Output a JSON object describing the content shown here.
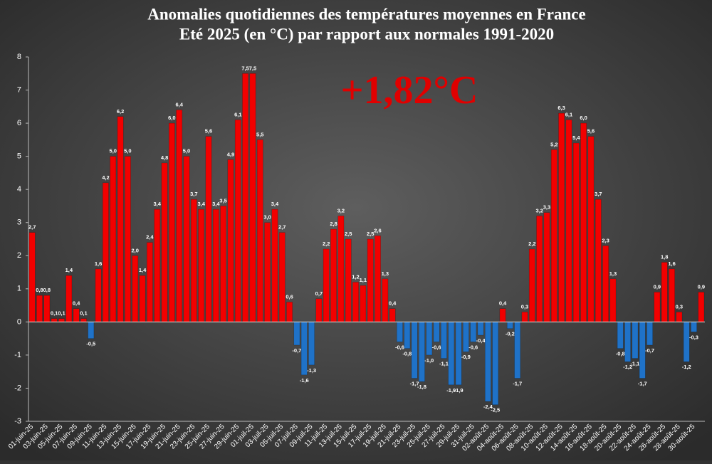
{
  "chart_data": {
    "type": "bar",
    "title": "Anomalies quotidiennes des températures moyennes en France",
    "subtitle": "Eté 2025 (en °C) par rapport aux normales 1991-2020",
    "annotation": "+1,82°C",
    "categories": [
      "01-juin-25",
      null,
      "03-juin-25",
      null,
      "05-juin-25",
      null,
      "07-juin-25",
      null,
      "09-juin-25",
      null,
      "11-juin-25",
      null,
      "13-juin-25",
      null,
      "15-juin-25",
      null,
      "17-juin-25",
      null,
      "19-juin-25",
      null,
      "21-juin-25",
      null,
      "23-juin-25",
      null,
      "25-juin-25",
      null,
      "27-juin-25",
      null,
      "29-juin-25",
      null,
      "01-juil-25",
      null,
      "03-juil-25",
      null,
      "05-juil-25",
      null,
      "07-juil-25",
      null,
      "09-juil-25",
      null,
      "11-juil-25",
      null,
      "13-juil-25",
      null,
      "15-juil-25",
      null,
      "17-juil-25",
      null,
      "19-juil-25",
      null,
      "21-juil-25",
      null,
      "23-juil-25",
      null,
      "25-juil-25",
      null,
      "27-juil-25",
      null,
      "29-juil-25",
      null,
      "31-juil-25",
      null,
      "02-août-25",
      null,
      "04-août-25",
      null,
      "06-août-25",
      null,
      "08-août-25",
      null,
      "10-août-25",
      null,
      "12-août-25",
      null,
      "14-août-25",
      null,
      "16-août-25",
      null,
      "18-août-25",
      null,
      "20-août-25",
      null,
      "22-août-25",
      null,
      "24-août-25",
      null,
      "26-août-25",
      null,
      "28-août-25",
      null,
      "30-août-25",
      null
    ],
    "values": [
      2.7,
      0.8,
      0.8,
      0.1,
      0.1,
      1.4,
      0.4,
      0.1,
      -0.5,
      1.6,
      4.2,
      5.0,
      6.2,
      5.0,
      2.0,
      1.4,
      2.4,
      3.4,
      4.8,
      6.0,
      6.4,
      5.0,
      3.7,
      3.4,
      5.6,
      3.4,
      3.5,
      4.9,
      6.1,
      7.5,
      7.5,
      5.5,
      3.0,
      3.4,
      2.7,
      0.6,
      -0.7,
      -1.6,
      -1.3,
      0.7,
      2.2,
      2.8,
      3.2,
      2.5,
      1.2,
      1.1,
      2.5,
      2.6,
      1.3,
      0.4,
      -0.6,
      -0.8,
      -1.7,
      -1.8,
      -1.0,
      -0.6,
      -1.1,
      -1.9,
      -1.9,
      -0.9,
      -0.6,
      -0.4,
      -2.4,
      -2.5,
      0.4,
      -0.2,
      -1.7,
      0.3,
      2.2,
      3.2,
      3.3,
      5.2,
      6.3,
      6.1,
      5.4,
      6.0,
      5.6,
      3.7,
      2.3,
      1.3,
      -0.8,
      -1.2,
      -1.1,
      -1.7,
      -0.7,
      0.9,
      1.8,
      1.6,
      0.3,
      -1.2,
      -0.3,
      0.9
    ],
    "value_labels": [
      "2,7",
      "0,8",
      "0,8",
      "0,1",
      "0,1",
      "1,4",
      "0,4",
      "0,1",
      "-0,5",
      "1,6",
      "4,2",
      "5,0",
      "6,2",
      "5,0",
      "2,0",
      "1,4",
      "2,4",
      "3,4",
      "4,8",
      "6,0",
      "6,4",
      "5,0",
      "3,7",
      "3,4",
      "5,6",
      "3,4",
      "3,5",
      "4,9",
      "6,1",
      "7,5",
      "7,5",
      "5,5",
      "3,0",
      "3,4",
      "2,7",
      "0,6",
      "-0,7",
      "-1,6",
      "-1,3",
      "0,7",
      "2,2",
      "2,8",
      "3,2",
      "2,5",
      "1,2",
      "1,1",
      "2,5",
      "2,6",
      "1,3",
      "0,4",
      "-0,6",
      "-0,8",
      "-1,7",
      "-1,8",
      "-1,0",
      "-0,6",
      "-1,1",
      "-1,9",
      "-1,9",
      "-0,9",
      "-0,6",
      "-0,4",
      "-2,4",
      "-2,5",
      "0,4",
      "-0,2",
      "-1,7",
      "0,3",
      "2,2",
      "3,2",
      "3,3",
      "5,2",
      "6,3",
      "6,1",
      "5,4",
      "6,0",
      "5,6",
      "3,7",
      "2,3",
      "1,3",
      "-0,8",
      "-1,2",
      "-1,1",
      "-1,7",
      "-0,7",
      "0,9",
      "1,8",
      "1,6",
      "0,3",
      "-1,2",
      "-0,3",
      "0,9"
    ],
    "positive_color": "#f20000",
    "negative_color": "#1f72c8",
    "ylim": [
      -3,
      8
    ],
    "yticks": [
      -3,
      -2,
      -1,
      0,
      1,
      2,
      3,
      4,
      5,
      6,
      7,
      8
    ],
    "grid": false
  }
}
